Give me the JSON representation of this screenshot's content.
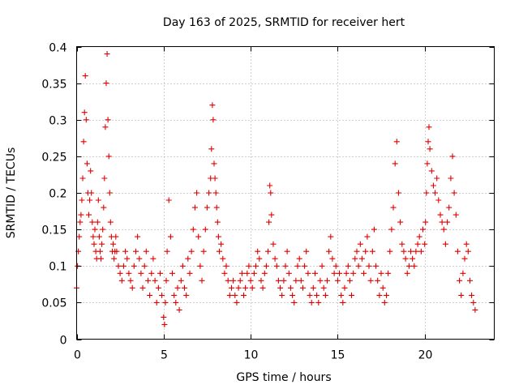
{
  "chart_data": {
    "type": "scatter",
    "title": "Day 163 of 2025, SRMTID for receiver hert",
    "xlabel": "GPS time / hours",
    "ylabel": "SRMTID / TECUs",
    "xlim": [
      0,
      24
    ],
    "ylim": [
      0,
      0.4
    ],
    "xticks": [
      0,
      5,
      10,
      15,
      20
    ],
    "xtick_labels": [
      "0",
      "5",
      "10",
      "15",
      "20"
    ],
    "yticks": [
      0,
      0.05,
      0.1,
      0.15,
      0.2,
      0.25,
      0.3,
      0.35,
      0.4
    ],
    "ytick_labels": [
      "0",
      "0.05",
      "0.1",
      "0.15",
      "0.2",
      "0.25",
      "0.3",
      "0.35",
      "0.4"
    ],
    "grid": true,
    "marker": "plus",
    "color": "#e00000",
    "series": [
      {
        "name": "SRMTID",
        "x": [
          0.0,
          0.05,
          0.1,
          0.15,
          0.2,
          0.25,
          0.3,
          0.35,
          0.4,
          0.45,
          0.5,
          0.55,
          0.6,
          0.65,
          0.7,
          0.75,
          0.8,
          0.85,
          0.9,
          0.95,
          1.0,
          1.05,
          1.1,
          1.15,
          1.2,
          1.25,
          1.3,
          1.35,
          1.4,
          1.45,
          1.5,
          1.55,
          1.6,
          1.65,
          1.7,
          1.75,
          1.8,
          1.85,
          1.9,
          1.95,
          2.0,
          2.05,
          2.1,
          2.15,
          2.2,
          2.25,
          2.3,
          2.4,
          2.5,
          2.6,
          2.7,
          2.8,
          2.9,
          3.0,
          3.1,
          3.2,
          3.3,
          3.4,
          3.5,
          3.6,
          3.7,
          3.8,
          3.9,
          4.0,
          4.1,
          4.2,
          4.3,
          4.4,
          4.5,
          4.6,
          4.7,
          4.8,
          4.9,
          5.0,
          5.05,
          5.1,
          5.15,
          5.2,
          5.3,
          5.4,
          5.5,
          5.6,
          5.7,
          5.8,
          5.9,
          6.0,
          6.1,
          6.2,
          6.3,
          6.4,
          6.5,
          6.6,
          6.7,
          6.8,
          6.9,
          7.0,
          7.1,
          7.2,
          7.3,
          7.4,
          7.5,
          7.6,
          7.7,
          7.75,
          7.8,
          7.85,
          7.9,
          7.95,
          8.0,
          8.05,
          8.1,
          8.15,
          8.2,
          8.3,
          8.4,
          8.5,
          8.6,
          8.7,
          8.8,
          8.9,
          9.0,
          9.1,
          9.2,
          9.3,
          9.4,
          9.5,
          9.6,
          9.7,
          9.8,
          9.9,
          10.0,
          10.1,
          10.2,
          10.3,
          10.4,
          10.5,
          10.6,
          10.7,
          10.8,
          10.9,
          11.0,
          11.05,
          11.1,
          11.15,
          11.2,
          11.3,
          11.4,
          11.5,
          11.6,
          11.7,
          11.8,
          11.9,
          12.0,
          12.1,
          12.2,
          12.3,
          12.4,
          12.5,
          12.6,
          12.7,
          12.8,
          12.9,
          13.0,
          13.1,
          13.2,
          13.3,
          13.4,
          13.5,
          13.6,
          13.7,
          13.8,
          13.9,
          14.0,
          14.1,
          14.2,
          14.3,
          14.4,
          14.5,
          14.6,
          14.7,
          14.8,
          14.9,
          15.0,
          15.1,
          15.2,
          15.3,
          15.4,
          15.5,
          15.6,
          15.7,
          15.8,
          15.9,
          16.0,
          16.1,
          16.2,
          16.3,
          16.4,
          16.5,
          16.6,
          16.7,
          16.8,
          16.9,
          17.0,
          17.1,
          17.2,
          17.3,
          17.4,
          17.5,
          17.6,
          17.7,
          17.8,
          17.9,
          18.0,
          18.1,
          18.2,
          18.3,
          18.4,
          18.5,
          18.6,
          18.7,
          18.8,
          18.9,
          19.0,
          19.1,
          19.2,
          19.3,
          19.4,
          19.5,
          19.6,
          19.7,
          19.8,
          19.9,
          20.0,
          20.05,
          20.1,
          20.15,
          20.2,
          20.25,
          20.3,
          20.4,
          20.5,
          20.6,
          20.7,
          20.8,
          20.9,
          21.0,
          21.1,
          21.2,
          21.3,
          21.4,
          21.5,
          21.6,
          21.7,
          21.8,
          21.9,
          22.0,
          22.1,
          22.2,
          22.3,
          22.4,
          22.5,
          22.6,
          22.7,
          22.8,
          22.9
        ],
        "y": [
          0.07,
          0.1,
          0.12,
          0.14,
          0.16,
          0.17,
          0.19,
          0.22,
          0.27,
          0.31,
          0.36,
          0.3,
          0.24,
          0.2,
          0.17,
          0.19,
          0.23,
          0.2,
          0.16,
          0.14,
          0.13,
          0.15,
          0.12,
          0.11,
          0.16,
          0.19,
          0.14,
          0.12,
          0.11,
          0.13,
          0.15,
          0.18,
          0.22,
          0.29,
          0.35,
          0.39,
          0.3,
          0.25,
          0.2,
          0.16,
          0.14,
          0.12,
          0.13,
          0.11,
          0.12,
          0.14,
          0.12,
          0.1,
          0.09,
          0.08,
          0.1,
          0.12,
          0.11,
          0.09,
          0.08,
          0.07,
          0.1,
          0.12,
          0.14,
          0.11,
          0.09,
          0.07,
          0.1,
          0.12,
          0.08,
          0.06,
          0.09,
          0.11,
          0.08,
          0.05,
          0.07,
          0.09,
          0.06,
          0.03,
          0.02,
          0.05,
          0.08,
          0.12,
          0.19,
          0.14,
          0.09,
          0.06,
          0.05,
          0.07,
          0.04,
          0.08,
          0.1,
          0.07,
          0.06,
          0.11,
          0.09,
          0.12,
          0.15,
          0.18,
          0.2,
          0.14,
          0.1,
          0.08,
          0.12,
          0.15,
          0.18,
          0.2,
          0.22,
          0.26,
          0.32,
          0.3,
          0.24,
          0.22,
          0.2,
          0.18,
          0.16,
          0.14,
          0.12,
          0.13,
          0.11,
          0.09,
          0.1,
          0.08,
          0.06,
          0.07,
          0.08,
          0.06,
          0.05,
          0.07,
          0.08,
          0.09,
          0.06,
          0.07,
          0.09,
          0.1,
          0.08,
          0.07,
          0.09,
          0.1,
          0.12,
          0.11,
          0.08,
          0.07,
          0.09,
          0.1,
          0.12,
          0.16,
          0.21,
          0.2,
          0.17,
          0.13,
          0.11,
          0.1,
          0.08,
          0.07,
          0.06,
          0.08,
          0.1,
          0.12,
          0.09,
          0.07,
          0.06,
          0.05,
          0.08,
          0.1,
          0.11,
          0.08,
          0.07,
          0.1,
          0.12,
          0.09,
          0.06,
          0.05,
          0.07,
          0.09,
          0.06,
          0.05,
          0.08,
          0.1,
          0.07,
          0.06,
          0.08,
          0.12,
          0.14,
          0.11,
          0.09,
          0.1,
          0.08,
          0.09,
          0.06,
          0.05,
          0.07,
          0.09,
          0.1,
          0.08,
          0.06,
          0.09,
          0.11,
          0.12,
          0.1,
          0.13,
          0.11,
          0.09,
          0.12,
          0.14,
          0.1,
          0.08,
          0.12,
          0.15,
          0.1,
          0.08,
          0.06,
          0.09,
          0.07,
          0.05,
          0.06,
          0.09,
          0.12,
          0.15,
          0.18,
          0.24,
          0.27,
          0.2,
          0.16,
          0.13,
          0.12,
          0.11,
          0.09,
          0.1,
          0.12,
          0.11,
          0.1,
          0.12,
          0.13,
          0.14,
          0.12,
          0.15,
          0.13,
          0.16,
          0.2,
          0.24,
          0.27,
          0.29,
          0.26,
          0.23,
          0.21,
          0.2,
          0.22,
          0.19,
          0.17,
          0.16,
          0.15,
          0.13,
          0.16,
          0.18,
          0.22,
          0.25,
          0.2,
          0.17,
          0.12,
          0.08,
          0.06,
          0.09,
          0.11,
          0.13,
          0.12,
          0.08,
          0.06,
          0.05,
          0.04
        ]
      }
    ]
  }
}
